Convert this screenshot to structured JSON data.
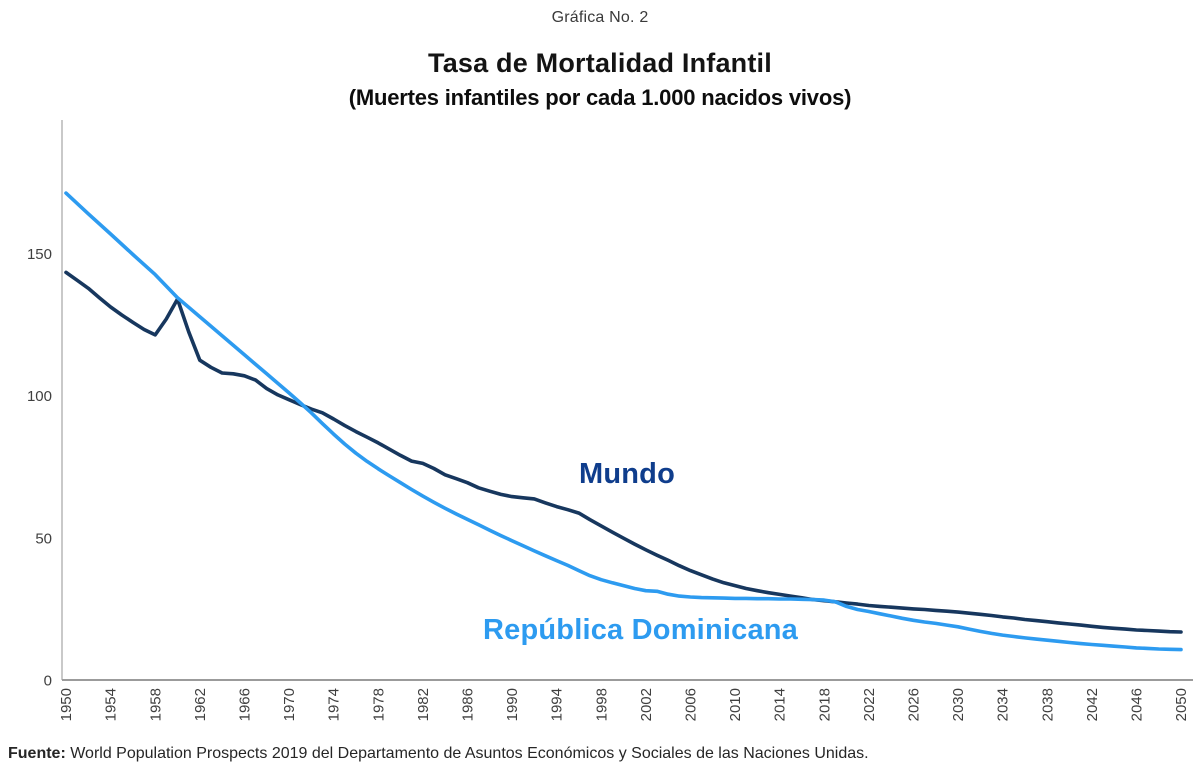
{
  "header": {
    "caption": "Gráfica No. 2"
  },
  "chart": {
    "title": "Tasa de Mortalidad Infantil",
    "subtitle": "(Muertes infantiles por cada 1.000 nacidos vivos)"
  },
  "footer": {
    "source_label": "Fuente:",
    "source_text": " World Population Prospects 2019 del Departamento de Asuntos Económicos y Sociales de las Naciones Unidas."
  },
  "colors": {
    "axis_y": "#b7b7b7",
    "axis_x": "#9b9b9b",
    "tick_text": "#3f3f3f"
  },
  "chart_data": {
    "type": "line",
    "title": "Tasa de Mortalidad Infantil",
    "subtitle": "(Muertes infantiles por cada 1.000 nacidos vivos)",
    "grid": false,
    "legend_position": "inline-labels",
    "x_axis": {
      "min": 1950,
      "max": 2050,
      "tick_step": 4,
      "tick_labels": [
        "1950",
        "1954",
        "1958",
        "1962",
        "1966",
        "1970",
        "1974",
        "1978",
        "1982",
        "1986",
        "1990",
        "1994",
        "1998",
        "2002",
        "2006",
        "2010",
        "2014",
        "2018",
        "2022",
        "2026",
        "2030",
        "2034",
        "2038",
        "2042",
        "2046",
        "2050"
      ]
    },
    "y_axis": {
      "min": 0,
      "max": 197,
      "ticks": [
        0,
        50,
        100,
        150
      ],
      "tick_labels": [
        "0",
        "50",
        "100",
        "150"
      ]
    },
    "series": [
      {
        "name": "Mundo",
        "color": "#17375e",
        "label_color": "#0f3d8c",
        "points": [
          [
            1950,
            143.4
          ],
          [
            1951,
            140.6
          ],
          [
            1952,
            137.8
          ],
          [
            1953,
            134.4
          ],
          [
            1954,
            131.2
          ],
          [
            1955,
            128.4
          ],
          [
            1956,
            125.8
          ],
          [
            1957,
            123.3
          ],
          [
            1958,
            121.4
          ],
          [
            1959,
            127.0
          ],
          [
            1960,
            134.0
          ],
          [
            1961,
            122.5
          ],
          [
            1962,
            112.5
          ],
          [
            1963,
            110.0
          ],
          [
            1964,
            108.0
          ],
          [
            1965,
            107.7
          ],
          [
            1966,
            107.0
          ],
          [
            1967,
            105.5
          ],
          [
            1968,
            102.5
          ],
          [
            1969,
            100.3
          ],
          [
            1970,
            98.6
          ],
          [
            1971,
            96.9
          ],
          [
            1972,
            95.3
          ],
          [
            1973,
            94.0
          ],
          [
            1974,
            91.8
          ],
          [
            1975,
            89.5
          ],
          [
            1976,
            87.4
          ],
          [
            1977,
            85.4
          ],
          [
            1978,
            83.4
          ],
          [
            1979,
            81.2
          ],
          [
            1980,
            79.0
          ],
          [
            1981,
            77.0
          ],
          [
            1982,
            76.2
          ],
          [
            1983,
            74.4
          ],
          [
            1984,
            72.2
          ],
          [
            1985,
            70.8
          ],
          [
            1986,
            69.4
          ],
          [
            1987,
            67.6
          ],
          [
            1988,
            66.4
          ],
          [
            1989,
            65.3
          ],
          [
            1990,
            64.5
          ],
          [
            1991,
            64.1
          ],
          [
            1992,
            63.7
          ],
          [
            1993,
            62.3
          ],
          [
            1994,
            61.0
          ],
          [
            1995,
            59.9
          ],
          [
            1996,
            58.7
          ],
          [
            1997,
            56.4
          ],
          [
            1998,
            54.2
          ],
          [
            1999,
            52.0
          ],
          [
            2000,
            49.9
          ],
          [
            2001,
            47.8
          ],
          [
            2002,
            45.8
          ],
          [
            2003,
            43.9
          ],
          [
            2004,
            42.1
          ],
          [
            2005,
            40.2
          ],
          [
            2006,
            38.5
          ],
          [
            2007,
            37.0
          ],
          [
            2008,
            35.5
          ],
          [
            2009,
            34.2
          ],
          [
            2010,
            33.2
          ],
          [
            2011,
            32.2
          ],
          [
            2012,
            31.4
          ],
          [
            2013,
            30.7
          ],
          [
            2014,
            30.1
          ],
          [
            2015,
            29.5
          ],
          [
            2016,
            28.9
          ],
          [
            2017,
            28.3
          ],
          [
            2018,
            27.9
          ],
          [
            2019,
            27.5
          ],
          [
            2020,
            27.1
          ],
          [
            2021,
            26.7
          ],
          [
            2022,
            26.2
          ],
          [
            2023,
            25.9
          ],
          [
            2024,
            25.6
          ],
          [
            2025,
            25.3
          ],
          [
            2026,
            25.0
          ],
          [
            2027,
            24.8
          ],
          [
            2028,
            24.5
          ],
          [
            2029,
            24.2
          ],
          [
            2030,
            23.9
          ],
          [
            2031,
            23.5
          ],
          [
            2032,
            23.1
          ],
          [
            2033,
            22.7
          ],
          [
            2034,
            22.2
          ],
          [
            2035,
            21.8
          ],
          [
            2036,
            21.3
          ],
          [
            2037,
            20.9
          ],
          [
            2038,
            20.5
          ],
          [
            2039,
            20.1
          ],
          [
            2040,
            19.7
          ],
          [
            2041,
            19.3
          ],
          [
            2042,
            18.9
          ],
          [
            2043,
            18.5
          ],
          [
            2044,
            18.2
          ],
          [
            2045,
            17.9
          ],
          [
            2046,
            17.6
          ],
          [
            2047,
            17.4
          ],
          [
            2048,
            17.2
          ],
          [
            2049,
            17.0
          ],
          [
            2050,
            16.9
          ]
        ]
      },
      {
        "name": "República Dominicana",
        "color": "#2d9bf0",
        "label_color": "#2d9bf0",
        "points": [
          [
            1950,
            171.3
          ],
          [
            1952,
            164.0
          ],
          [
            1954,
            156.9
          ],
          [
            1956,
            149.7
          ],
          [
            1958,
            142.6
          ],
          [
            1960,
            134.5
          ],
          [
            1962,
            127.8
          ],
          [
            1964,
            121.1
          ],
          [
            1966,
            114.4
          ],
          [
            1968,
            107.7
          ],
          [
            1970,
            101.0
          ],
          [
            1971,
            97.6
          ],
          [
            1972,
            94.0
          ],
          [
            1973,
            90.2
          ],
          [
            1974,
            86.5
          ],
          [
            1975,
            83.0
          ],
          [
            1976,
            79.8
          ],
          [
            1977,
            76.9
          ],
          [
            1978,
            74.3
          ],
          [
            1979,
            71.8
          ],
          [
            1980,
            69.4
          ],
          [
            1981,
            67.0
          ],
          [
            1982,
            64.7
          ],
          [
            1983,
            62.5
          ],
          [
            1984,
            60.4
          ],
          [
            1985,
            58.4
          ],
          [
            1986,
            56.5
          ],
          [
            1987,
            54.6
          ],
          [
            1988,
            52.7
          ],
          [
            1989,
            50.8
          ],
          [
            1990,
            49.0
          ],
          [
            1991,
            47.2
          ],
          [
            1992,
            45.4
          ],
          [
            1993,
            43.7
          ],
          [
            1994,
            42.0
          ],
          [
            1995,
            40.3
          ],
          [
            1996,
            38.5
          ],
          [
            1997,
            36.7
          ],
          [
            1998,
            35.3
          ],
          [
            1999,
            34.2
          ],
          [
            2000,
            33.2
          ],
          [
            2001,
            32.2
          ],
          [
            2002,
            31.4
          ],
          [
            2003,
            31.2
          ],
          [
            2004,
            30.2
          ],
          [
            2005,
            29.5
          ],
          [
            2006,
            29.2
          ],
          [
            2007,
            29.0
          ],
          [
            2008,
            28.9
          ],
          [
            2009,
            28.8
          ],
          [
            2010,
            28.7
          ],
          [
            2011,
            28.7
          ],
          [
            2012,
            28.6
          ],
          [
            2013,
            28.6
          ],
          [
            2014,
            28.5
          ],
          [
            2015,
            28.5
          ],
          [
            2016,
            28.4
          ],
          [
            2017,
            28.3
          ],
          [
            2018,
            28.1
          ],
          [
            2019,
            27.5
          ],
          [
            2020,
            25.9
          ],
          [
            2021,
            24.8
          ],
          [
            2022,
            24.1
          ],
          [
            2023,
            23.3
          ],
          [
            2024,
            22.5
          ],
          [
            2025,
            21.7
          ],
          [
            2026,
            21.0
          ],
          [
            2027,
            20.4
          ],
          [
            2028,
            19.9
          ],
          [
            2029,
            19.3
          ],
          [
            2030,
            18.7
          ],
          [
            2031,
            17.9
          ],
          [
            2032,
            17.1
          ],
          [
            2033,
            16.4
          ],
          [
            2034,
            15.8
          ],
          [
            2035,
            15.3
          ],
          [
            2036,
            14.8
          ],
          [
            2037,
            14.4
          ],
          [
            2038,
            14.0
          ],
          [
            2039,
            13.6
          ],
          [
            2040,
            13.2
          ],
          [
            2041,
            12.8
          ],
          [
            2042,
            12.5
          ],
          [
            2043,
            12.2
          ],
          [
            2044,
            11.9
          ],
          [
            2045,
            11.6
          ],
          [
            2046,
            11.3
          ],
          [
            2047,
            11.1
          ],
          [
            2048,
            10.9
          ],
          [
            2049,
            10.8
          ],
          [
            2050,
            10.7
          ]
        ]
      }
    ]
  }
}
